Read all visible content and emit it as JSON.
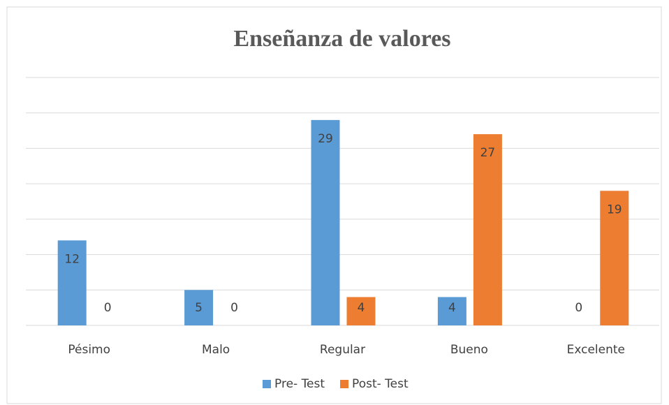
{
  "chart_data": {
    "type": "bar",
    "title": "Enseñanza de valores",
    "categories": [
      "Pésimo",
      "Malo",
      "Regular",
      "Bueno",
      "Excelente"
    ],
    "series": [
      {
        "name": "Pre- Test",
        "color": "#5b9bd5",
        "values": [
          12,
          5,
          29,
          4,
          0
        ]
      },
      {
        "name": "Post- Test",
        "color": "#ed7d31",
        "values": [
          0,
          0,
          4,
          27,
          19
        ]
      }
    ],
    "ylim": [
      0,
      35
    ],
    "yticks": [
      0,
      5,
      10,
      15,
      20,
      25,
      30,
      35
    ],
    "ytick_labels_visible": false,
    "grid": true,
    "legend": "bottom",
    "data_labels": true
  }
}
